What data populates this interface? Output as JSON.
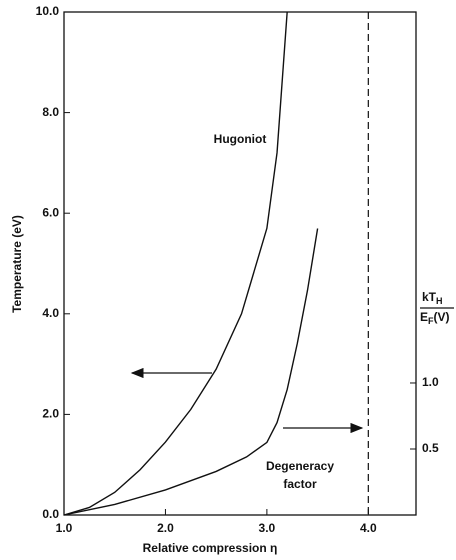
{
  "chart_data": {
    "type": "line",
    "xlabel": "Relative compression η",
    "ylabel": "Temperature (eV)",
    "y2label": {
      "numerator": [
        "kT",
        "H"
      ],
      "denominator": [
        "E",
        "F",
        "(V)"
      ]
    },
    "xlim": [
      1.0,
      4.47
    ],
    "ylim": [
      0,
      10
    ],
    "y2lim": [
      0,
      3.81
    ],
    "xticks": [
      {
        "value": 1,
        "label": "1.0"
      },
      {
        "value": 2,
        "label": "2.0"
      },
      {
        "value": 3,
        "label": "3.0"
      },
      {
        "value": 4,
        "label": "4.0"
      }
    ],
    "yticks": [
      {
        "value": 0,
        "label": "0.0"
      },
      {
        "value": 2,
        "label": "2.0"
      },
      {
        "value": 4,
        "label": "4.0"
      },
      {
        "value": 6,
        "label": "6.0"
      },
      {
        "value": 8,
        "label": "8.0"
      },
      {
        "value": 10,
        "label": "10.0"
      }
    ],
    "y2ticks": [
      0.5,
      {
        "value": 1,
        "label": "1.0"
      }
    ],
    "series": [
      {
        "name": "Hugoniot",
        "color": "#111111",
        "x": [
          1.0,
          1.25,
          1.5,
          1.75,
          2.0,
          2.25,
          2.5,
          2.75,
          3.0,
          3.1,
          3.2
        ],
        "values": [
          0,
          0.15,
          0.45,
          0.9,
          1.45,
          2.1,
          2.9,
          4.0,
          5.7,
          7.2,
          10
        ]
      },
      {
        "name": "Degeneracy factor",
        "color": "#111111",
        "axis": "y2",
        "x": [
          1.0,
          1.5,
          2.0,
          2.5,
          2.8,
          3.0,
          3.1,
          3.2,
          3.3,
          3.4,
          3.5
        ],
        "values": [
          0,
          0.08,
          0.19,
          0.33,
          0.44,
          0.55,
          0.7,
          0.95,
          1.3,
          1.7,
          2.17
        ]
      }
    ],
    "annotations": [
      "Hugoniot",
      "Degeneracy",
      "factor"
    ],
    "vline": 4.0
  }
}
